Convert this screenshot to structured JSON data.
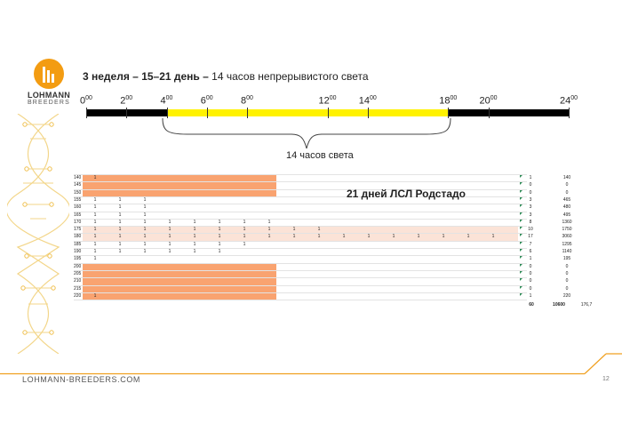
{
  "logo": {
    "name": "LOHMANN",
    "sub": "BREEDERS"
  },
  "slide": {
    "title_bold": "3 неделя – 15–21 день –",
    "title_rest": " 14 часов непрерывистого света",
    "page_number": "12"
  },
  "timeline": {
    "labels": [
      {
        "h": "0",
        "sup": "00"
      },
      {
        "h": "2",
        "sup": "00"
      },
      {
        "h": "4",
        "sup": "00"
      },
      {
        "h": "6",
        "sup": "00"
      },
      {
        "h": "8",
        "sup": "00"
      },
      {
        "h": "12",
        "sup": "00"
      },
      {
        "h": "14",
        "sup": "00"
      },
      {
        "h": "18",
        "sup": "00"
      },
      {
        "h": "20",
        "sup": "00"
      },
      {
        "h": "24",
        "sup": "00"
      }
    ],
    "light_start_hour": 4,
    "light_end_hour": 18,
    "colors": {
      "dark": "#000000",
      "light": "#fff200"
    },
    "brace_label": "14 часов света"
  },
  "table": {
    "title": "21 дней ЛСЛ Родстадо",
    "rows": [
      {
        "label": "140",
        "ones": 1,
        "count": "1",
        "total": "140"
      },
      {
        "label": "145",
        "ones": 0,
        "count": "0",
        "total": "0"
      },
      {
        "label": "150",
        "ones": 0,
        "count": "0",
        "total": "0"
      },
      {
        "label": "155",
        "ones": 3,
        "count": "3",
        "total": "465"
      },
      {
        "label": "160",
        "ones": 3,
        "count": "3",
        "total": "480"
      },
      {
        "label": "165",
        "ones": 3,
        "count": "3",
        "total": "495"
      },
      {
        "label": "170",
        "ones": 8,
        "count": "8",
        "total": "1360"
      },
      {
        "label": "175",
        "ones": 10,
        "count": "10",
        "total": "1750"
      },
      {
        "label": "180",
        "ones": 17,
        "count": "17",
        "total": "3060"
      },
      {
        "label": "185",
        "ones": 7,
        "count": "7",
        "total": "1295"
      },
      {
        "label": "190",
        "ones": 6,
        "count": "6",
        "total": "1140"
      },
      {
        "label": "195",
        "ones": 1,
        "count": "1",
        "total": "195"
      },
      {
        "label": "200",
        "ones": 0,
        "count": "0",
        "total": "0"
      },
      {
        "label": "205",
        "ones": 0,
        "count": "0",
        "total": "0"
      },
      {
        "label": "210",
        "ones": 0,
        "count": "0",
        "total": "0"
      },
      {
        "label": "215",
        "ones": 0,
        "count": "0",
        "total": "0"
      },
      {
        "label": "220",
        "ones": 1,
        "count": "1",
        "total": "220"
      }
    ],
    "totals": {
      "count": "60",
      "sum": "10600",
      "avg": "176,7"
    },
    "colors": {
      "highlight": "#f9a370",
      "highlight_light": "#fbe3d7"
    }
  },
  "footer": {
    "site": "LOHMANN-BREEDERS.COM",
    "accent": "#f0a020"
  }
}
